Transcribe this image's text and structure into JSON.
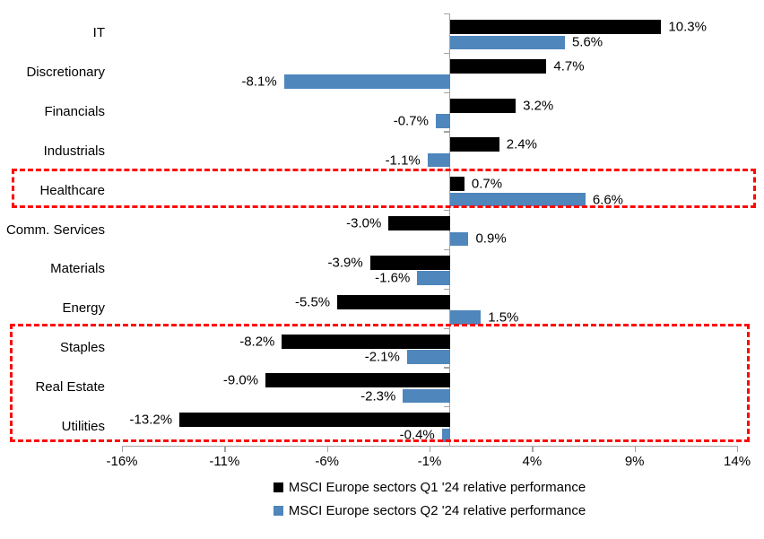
{
  "page": {
    "background": "#ffffff"
  },
  "chart_data": {
    "type": "bar",
    "orientation": "horizontal",
    "title": "",
    "categories": [
      "IT",
      "Discretionary",
      "Financials",
      "Industrials",
      "Healthcare",
      "Comm. Services",
      "Materials",
      "Energy",
      "Staples",
      "Real Estate",
      "Utilities"
    ],
    "series": [
      {
        "name": "MSCI Europe sectors Q1 '24 relative performance",
        "color": "#000000",
        "values": [
          10.3,
          4.7,
          3.2,
          2.4,
          0.7,
          -3.0,
          -3.9,
          -5.5,
          -8.2,
          -9.0,
          -13.2
        ],
        "labels": [
          "10.3%",
          "4.7%",
          "3.2%",
          "2.4%",
          "0.7%",
          "-3.0%",
          "-3.9%",
          "-5.5%",
          "-8.2%",
          "-9.0%",
          "-13.2%"
        ]
      },
      {
        "name": "MSCI Europe sectors Q2 '24 relative performance",
        "color": "#4f86bc",
        "values": [
          5.6,
          -8.1,
          -0.7,
          -1.1,
          6.6,
          0.9,
          -1.6,
          1.5,
          -2.1,
          -2.3,
          -0.4
        ],
        "labels": [
          "5.6%",
          "-8.1%",
          "-0.7%",
          "-1.1%",
          "6.6%",
          "0.9%",
          "-1.6%",
          "1.5%",
          "-2.1%",
          "-2.3%",
          "-0.4%"
        ]
      }
    ],
    "x_axis": {
      "min": -16,
      "max": 14,
      "tick_values": [
        -16,
        -11,
        -6,
        -1,
        4,
        9,
        14
      ],
      "tick_labels": [
        "-16%",
        "-11%",
        "-6%",
        "-1%",
        "4%",
        "9%",
        "14%"
      ]
    },
    "axis_color": "#a3a3a3",
    "text_color": "#000000",
    "highlight_color": "#fe0505",
    "highlight_boxes": [
      {
        "name": "healthcare-highlight",
        "highlighted_categories": [
          "Healthcare"
        ],
        "rows": [
          4,
          4
        ]
      },
      {
        "name": "defensives-highlight",
        "highlighted_categories": [
          "Staples",
          "Real Estate",
          "Utilities"
        ],
        "rows": [
          8,
          10
        ]
      }
    ],
    "legend": {
      "position": "bottom",
      "items": [
        {
          "label": "MSCI Europe sectors Q1 '24 relative performance",
          "color": "#000000"
        },
        {
          "label": "MSCI Europe sectors Q2 '24 relative performance",
          "color": "#4f86bc"
        }
      ]
    }
  }
}
